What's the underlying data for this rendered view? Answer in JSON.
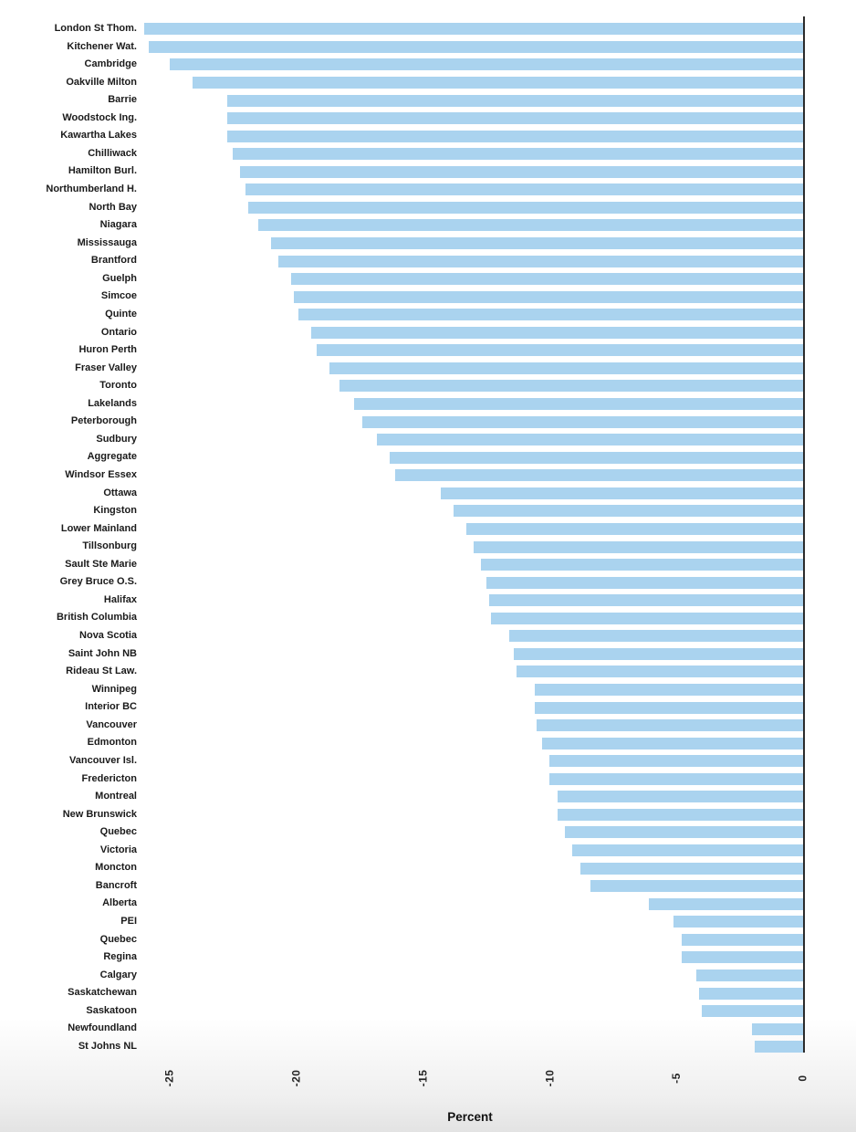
{
  "chart_data": {
    "type": "bar",
    "orientation": "horizontal",
    "title": "",
    "xlabel": "Percent",
    "ylabel": "",
    "xlim": [
      -27,
      0
    ],
    "xticks": [
      -25,
      -20,
      -15,
      -10,
      -5,
      0
    ],
    "grid": false,
    "legend": "none",
    "bar_color": "#aad3ef",
    "axis_line_color": "#2b2b2b",
    "categories": [
      "London St Thom.",
      "Kitchener Wat.",
      "Cambridge",
      "Oakville Milton",
      "Barrie",
      "Woodstock Ing.",
      "Kawartha Lakes",
      "Chilliwack",
      "Hamilton Burl.",
      "Northumberland H.",
      "North Bay",
      "Niagara",
      "Mississauga",
      "Brantford",
      "Guelph",
      "Simcoe",
      "Quinte",
      "Ontario",
      "Huron Perth",
      "Fraser Valley",
      "Toronto",
      "Lakelands",
      "Peterborough",
      "Sudbury",
      "Aggregate",
      "Windsor Essex",
      "Ottawa",
      "Kingston",
      "Lower Mainland",
      "Tillsonburg",
      "Sault Ste Marie",
      "Grey Bruce O.S.",
      "Halifax",
      "British Columbia",
      "Nova Scotia",
      "Saint John NB",
      "Rideau St Law.",
      "Winnipeg",
      "Interior BC",
      "Vancouver",
      "Edmonton",
      "Vancouver Isl.",
      "Fredericton",
      "Montreal",
      "New Brunswick",
      "Quebec",
      "Victoria",
      "Moncton",
      "Bancroft",
      "Alberta",
      "PEI",
      "Quebec",
      "Regina",
      "Calgary",
      "Saskatchewan",
      "Saskatoon",
      "Newfoundland",
      "St Johns NL"
    ],
    "values": [
      -26.0,
      -25.8,
      -25.0,
      -24.1,
      -22.7,
      -22.7,
      -22.7,
      -22.5,
      -22.2,
      -22.0,
      -21.9,
      -21.5,
      -21.0,
      -20.7,
      -20.2,
      -20.1,
      -19.9,
      -19.4,
      -19.2,
      -18.7,
      -18.3,
      -17.7,
      -17.4,
      -16.8,
      -16.3,
      -16.1,
      -14.3,
      -13.8,
      -13.3,
      -13.0,
      -12.7,
      -12.5,
      -12.4,
      -12.3,
      -11.6,
      -11.4,
      -11.3,
      -10.6,
      -10.6,
      -10.5,
      -10.3,
      -10.0,
      -10.0,
      -9.7,
      -9.7,
      -9.4,
      -9.1,
      -8.8,
      -8.4,
      -6.1,
      -5.1,
      -4.8,
      -4.8,
      -4.2,
      -4.1,
      -4.0,
      -2.0,
      -1.9
    ]
  },
  "axis": {
    "xlabel": "Percent"
  }
}
